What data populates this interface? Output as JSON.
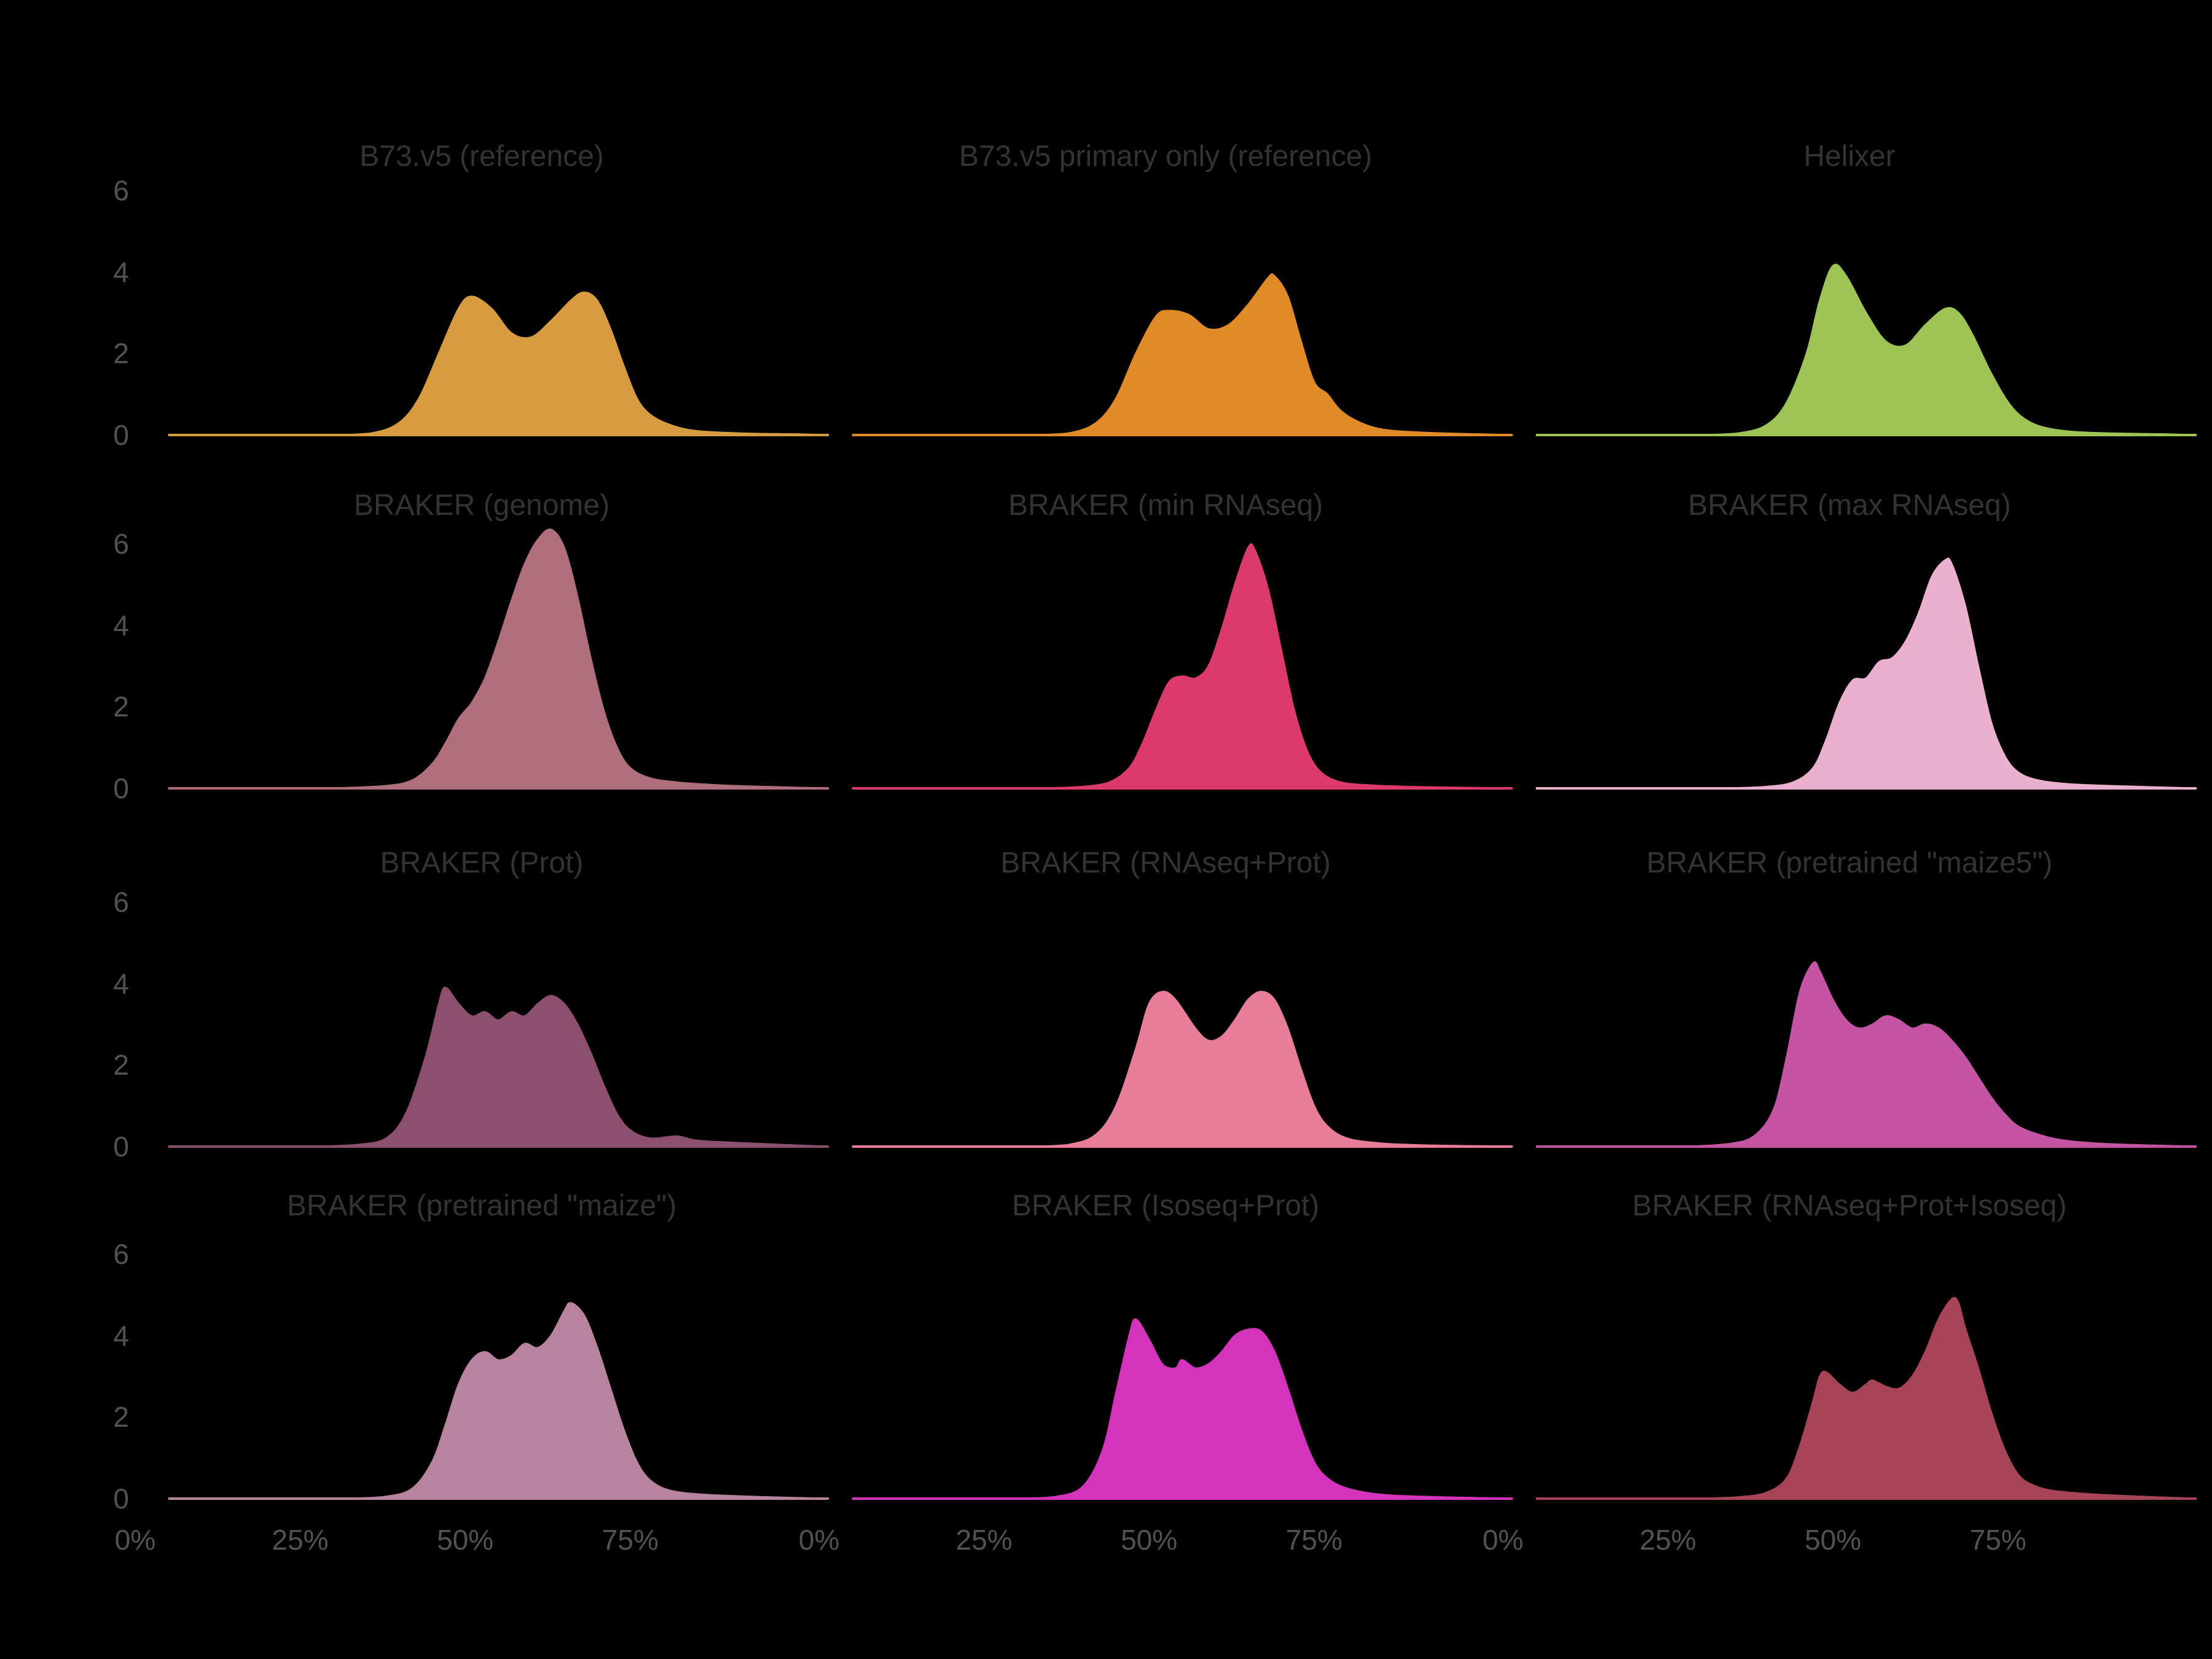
{
  "figure": {
    "background_color": "#000000",
    "title_color": "#333333",
    "tick_label_color": "#525252"
  },
  "chart_data": {
    "type": "area",
    "subtype": "faceted-density-ridgeline",
    "facets": {
      "rows": 4,
      "cols": 3
    },
    "xlabel": "",
    "ylabel": "",
    "x_tick_labels": [
      "0%",
      "25%",
      "50%",
      "75%"
    ],
    "x_tick_values": [
      0,
      25,
      50,
      75
    ],
    "y_tick_labels": [
      "0",
      "2",
      "4",
      "6"
    ],
    "y_tick_values": [
      0,
      2,
      4,
      6
    ],
    "x_domain": [
      0,
      105
    ],
    "y_domain": [
      0,
      6.6
    ],
    "grid": "off",
    "legend": "none",
    "panels": [
      {
        "id": "b73-v5-reference",
        "title": "B73.v5 (reference)",
        "color": "#D69C3F",
        "points": [
          [
            30,
            0
          ],
          [
            36,
            0.05
          ],
          [
            40,
            0.3
          ],
          [
            43,
            0.9
          ],
          [
            46,
            2.0
          ],
          [
            49,
            3.1
          ],
          [
            51,
            3.4
          ],
          [
            54,
            3.1
          ],
          [
            57,
            2.5
          ],
          [
            60,
            2.4
          ],
          [
            63,
            2.8
          ],
          [
            66,
            3.3
          ],
          [
            68,
            3.5
          ],
          [
            70,
            3.3
          ],
          [
            72,
            2.6
          ],
          [
            74,
            1.7
          ],
          [
            76,
            0.9
          ],
          [
            78,
            0.5
          ],
          [
            81,
            0.25
          ],
          [
            85,
            0.1
          ],
          [
            92,
            0.04
          ],
          [
            100,
            0.02
          ],
          [
            105,
            0
          ]
        ]
      },
      {
        "id": "b73-v5-primary-only-reference",
        "title": "B73.v5 primary only (reference)",
        "color": "#E08A28",
        "points": [
          [
            32,
            0
          ],
          [
            38,
            0.05
          ],
          [
            42,
            0.3
          ],
          [
            45,
            0.9
          ],
          [
            48,
            2.0
          ],
          [
            51,
            2.9
          ],
          [
            53,
            3.05
          ],
          [
            56,
            2.95
          ],
          [
            59,
            2.6
          ],
          [
            62,
            2.7
          ],
          [
            65,
            3.2
          ],
          [
            68,
            3.85
          ],
          [
            69,
            3.9
          ],
          [
            71,
            3.4
          ],
          [
            73,
            2.3
          ],
          [
            75,
            1.3
          ],
          [
            77,
            1.0
          ],
          [
            79,
            0.6
          ],
          [
            82,
            0.3
          ],
          [
            86,
            0.12
          ],
          [
            93,
            0.05
          ],
          [
            100,
            0.02
          ],
          [
            105,
            0
          ]
        ]
      },
      {
        "id": "helixer",
        "title": "Helixer",
        "color": "#9EC455",
        "points": [
          [
            30,
            0
          ],
          [
            36,
            0.05
          ],
          [
            40,
            0.25
          ],
          [
            43,
            0.8
          ],
          [
            46,
            2.0
          ],
          [
            48,
            3.3
          ],
          [
            50,
            4.15
          ],
          [
            52,
            3.9
          ],
          [
            55,
            3.0
          ],
          [
            58,
            2.3
          ],
          [
            61,
            2.2
          ],
          [
            64,
            2.7
          ],
          [
            67,
            3.1
          ],
          [
            69,
            3.0
          ],
          [
            71,
            2.5
          ],
          [
            74,
            1.5
          ],
          [
            77,
            0.7
          ],
          [
            80,
            0.3
          ],
          [
            84,
            0.12
          ],
          [
            90,
            0.05
          ],
          [
            100,
            0.02
          ],
          [
            105,
            0
          ]
        ]
      },
      {
        "id": "braker-genome",
        "title": "BRAKER (genome)",
        "color": "#AE6E7C",
        "points": [
          [
            30,
            0
          ],
          [
            38,
            0.06
          ],
          [
            42,
            0.2
          ],
          [
            45,
            0.6
          ],
          [
            47,
            1.1
          ],
          [
            49,
            1.7
          ],
          [
            51,
            2.1
          ],
          [
            53,
            2.7
          ],
          [
            55,
            3.6
          ],
          [
            57,
            4.6
          ],
          [
            59,
            5.5
          ],
          [
            61,
            6.1
          ],
          [
            63,
            6.35
          ],
          [
            65,
            5.9
          ],
          [
            67,
            4.7
          ],
          [
            69,
            3.2
          ],
          [
            71,
            1.9
          ],
          [
            73,
            1.0
          ],
          [
            75,
            0.5
          ],
          [
            78,
            0.25
          ],
          [
            82,
            0.15
          ],
          [
            88,
            0.08
          ],
          [
            95,
            0.04
          ],
          [
            105,
            0
          ]
        ]
      },
      {
        "id": "braker-min-rnaseq",
        "title": "BRAKER (min RNAseq)",
        "color": "#DC3A6C",
        "points": [
          [
            34,
            0
          ],
          [
            40,
            0.04
          ],
          [
            44,
            0.15
          ],
          [
            47,
            0.5
          ],
          [
            49,
            1.1
          ],
          [
            51,
            1.9
          ],
          [
            53,
            2.6
          ],
          [
            55,
            2.75
          ],
          [
            57,
            2.7
          ],
          [
            59,
            3.0
          ],
          [
            61,
            3.9
          ],
          [
            63,
            5.0
          ],
          [
            65,
            5.9
          ],
          [
            66,
            5.85
          ],
          [
            68,
            4.9
          ],
          [
            70,
            3.4
          ],
          [
            72,
            1.9
          ],
          [
            74,
            0.9
          ],
          [
            76,
            0.4
          ],
          [
            79,
            0.15
          ],
          [
            84,
            0.07
          ],
          [
            92,
            0.03
          ],
          [
            105,
            0
          ]
        ]
      },
      {
        "id": "braker-max-rnaseq",
        "title": "BRAKER (max RNAseq)",
        "color": "#EBB0CE",
        "points": [
          [
            34,
            0
          ],
          [
            40,
            0.04
          ],
          [
            44,
            0.15
          ],
          [
            47,
            0.5
          ],
          [
            49,
            1.2
          ],
          [
            51,
            2.1
          ],
          [
            53,
            2.65
          ],
          [
            55,
            2.7
          ],
          [
            57,
            3.1
          ],
          [
            59,
            3.2
          ],
          [
            61,
            3.6
          ],
          [
            63,
            4.3
          ],
          [
            65,
            5.2
          ],
          [
            67,
            5.6
          ],
          [
            68,
            5.5
          ],
          [
            70,
            4.5
          ],
          [
            72,
            3.0
          ],
          [
            74,
            1.6
          ],
          [
            76,
            0.8
          ],
          [
            78,
            0.4
          ],
          [
            81,
            0.2
          ],
          [
            86,
            0.1
          ],
          [
            94,
            0.05
          ],
          [
            105,
            0
          ]
        ]
      },
      {
        "id": "braker-prot",
        "title": "BRAKER (Prot)",
        "color": "#8C4F6E",
        "points": [
          [
            28,
            0
          ],
          [
            34,
            0.05
          ],
          [
            38,
            0.2
          ],
          [
            41,
            0.8
          ],
          [
            44,
            2.2
          ],
          [
            46,
            3.5
          ],
          [
            47,
            3.9
          ],
          [
            49,
            3.5
          ],
          [
            51,
            3.2
          ],
          [
            53,
            3.3
          ],
          [
            55,
            3.1
          ],
          [
            57,
            3.3
          ],
          [
            59,
            3.2
          ],
          [
            61,
            3.5
          ],
          [
            63,
            3.7
          ],
          [
            65,
            3.5
          ],
          [
            67,
            3.0
          ],
          [
            69,
            2.3
          ],
          [
            71,
            1.5
          ],
          [
            73,
            0.8
          ],
          [
            75,
            0.4
          ],
          [
            78,
            0.2
          ],
          [
            82,
            0.25
          ],
          [
            85,
            0.15
          ],
          [
            90,
            0.1
          ],
          [
            97,
            0.05
          ],
          [
            105,
            0
          ]
        ]
      },
      {
        "id": "braker-rnaseq-prot",
        "title": "BRAKER (RNAseq+Prot)",
        "color": "#E87D9A",
        "points": [
          [
            32,
            0
          ],
          [
            38,
            0.05
          ],
          [
            42,
            0.3
          ],
          [
            45,
            1.0
          ],
          [
            48,
            2.4
          ],
          [
            50,
            3.5
          ],
          [
            52,
            3.8
          ],
          [
            54,
            3.6
          ],
          [
            57,
            2.9
          ],
          [
            59,
            2.6
          ],
          [
            61,
            2.7
          ],
          [
            63,
            3.1
          ],
          [
            65,
            3.6
          ],
          [
            67,
            3.8
          ],
          [
            69,
            3.6
          ],
          [
            71,
            2.9
          ],
          [
            73,
            1.9
          ],
          [
            75,
            1.0
          ],
          [
            77,
            0.5
          ],
          [
            80,
            0.2
          ],
          [
            85,
            0.08
          ],
          [
            92,
            0.03
          ],
          [
            105,
            0
          ]
        ]
      },
      {
        "id": "braker-pretrained-maize5",
        "title": "BRAKER (pretrained \"maize5\")",
        "color": "#C455A5",
        "points": [
          [
            28,
            0
          ],
          [
            34,
            0.06
          ],
          [
            38,
            0.25
          ],
          [
            41,
            0.9
          ],
          [
            43,
            2.2
          ],
          [
            45,
            3.8
          ],
          [
            47,
            4.5
          ],
          [
            48,
            4.3
          ],
          [
            50,
            3.6
          ],
          [
            52,
            3.1
          ],
          [
            54,
            2.9
          ],
          [
            56,
            3.0
          ],
          [
            58,
            3.2
          ],
          [
            60,
            3.1
          ],
          [
            62,
            2.9
          ],
          [
            64,
            3.0
          ],
          [
            66,
            2.9
          ],
          [
            68,
            2.6
          ],
          [
            70,
            2.2
          ],
          [
            72,
            1.7
          ],
          [
            74,
            1.2
          ],
          [
            76,
            0.8
          ],
          [
            78,
            0.5
          ],
          [
            81,
            0.3
          ],
          [
            85,
            0.15
          ],
          [
            92,
            0.06
          ],
          [
            105,
            0
          ]
        ]
      },
      {
        "id": "braker-pretrained-maize",
        "title": "BRAKER (pretrained \"maize\")",
        "color": "#B8839E",
        "points": [
          [
            32,
            0
          ],
          [
            38,
            0.05
          ],
          [
            42,
            0.25
          ],
          [
            45,
            0.9
          ],
          [
            47,
            1.8
          ],
          [
            49,
            2.8
          ],
          [
            51,
            3.4
          ],
          [
            53,
            3.6
          ],
          [
            55,
            3.4
          ],
          [
            57,
            3.5
          ],
          [
            59,
            3.8
          ],
          [
            61,
            3.7
          ],
          [
            63,
            4.0
          ],
          [
            65,
            4.6
          ],
          [
            66,
            4.8
          ],
          [
            68,
            4.5
          ],
          [
            70,
            3.7
          ],
          [
            72,
            2.7
          ],
          [
            74,
            1.7
          ],
          [
            76,
            0.9
          ],
          [
            78,
            0.45
          ],
          [
            81,
            0.2
          ],
          [
            86,
            0.1
          ],
          [
            95,
            0.04
          ],
          [
            105,
            0
          ]
        ]
      },
      {
        "id": "braker-isoseq-prot",
        "title": "BRAKER (Isoseq+Prot)",
        "color": "#D633BC",
        "points": [
          [
            30,
            0
          ],
          [
            36,
            0.05
          ],
          [
            40,
            0.3
          ],
          [
            43,
            1.2
          ],
          [
            45,
            2.6
          ],
          [
            47,
            4.0
          ],
          [
            48,
            4.4
          ],
          [
            50,
            3.9
          ],
          [
            52,
            3.3
          ],
          [
            54,
            3.2
          ],
          [
            55,
            3.4
          ],
          [
            57,
            3.2
          ],
          [
            59,
            3.3
          ],
          [
            61,
            3.6
          ],
          [
            63,
            4.0
          ],
          [
            65,
            4.15
          ],
          [
            67,
            4.1
          ],
          [
            69,
            3.6
          ],
          [
            71,
            2.7
          ],
          [
            73,
            1.7
          ],
          [
            75,
            0.9
          ],
          [
            77,
            0.5
          ],
          [
            80,
            0.25
          ],
          [
            85,
            0.1
          ],
          [
            93,
            0.04
          ],
          [
            105,
            0
          ]
        ]
      },
      {
        "id": "braker-rnaseq-prot-isoseq",
        "title": "BRAKER (RNAseq+Prot+Isoseq)",
        "color": "#A84458",
        "points": [
          [
            30,
            0
          ],
          [
            36,
            0.04
          ],
          [
            40,
            0.15
          ],
          [
            43,
            0.5
          ],
          [
            45,
            1.3
          ],
          [
            47,
            2.4
          ],
          [
            48,
            3.0
          ],
          [
            49,
            3.1
          ],
          [
            51,
            2.8
          ],
          [
            53,
            2.6
          ],
          [
            55,
            2.8
          ],
          [
            56,
            2.9
          ],
          [
            58,
            2.75
          ],
          [
            60,
            2.7
          ],
          [
            62,
            3.0
          ],
          [
            64,
            3.6
          ],
          [
            66,
            4.4
          ],
          [
            68,
            4.9
          ],
          [
            69,
            4.8
          ],
          [
            70,
            4.2
          ],
          [
            72,
            3.2
          ],
          [
            74,
            2.1
          ],
          [
            76,
            1.2
          ],
          [
            78,
            0.6
          ],
          [
            80,
            0.35
          ],
          [
            83,
            0.2
          ],
          [
            88,
            0.12
          ],
          [
            95,
            0.06
          ],
          [
            105,
            0
          ]
        ]
      }
    ]
  }
}
